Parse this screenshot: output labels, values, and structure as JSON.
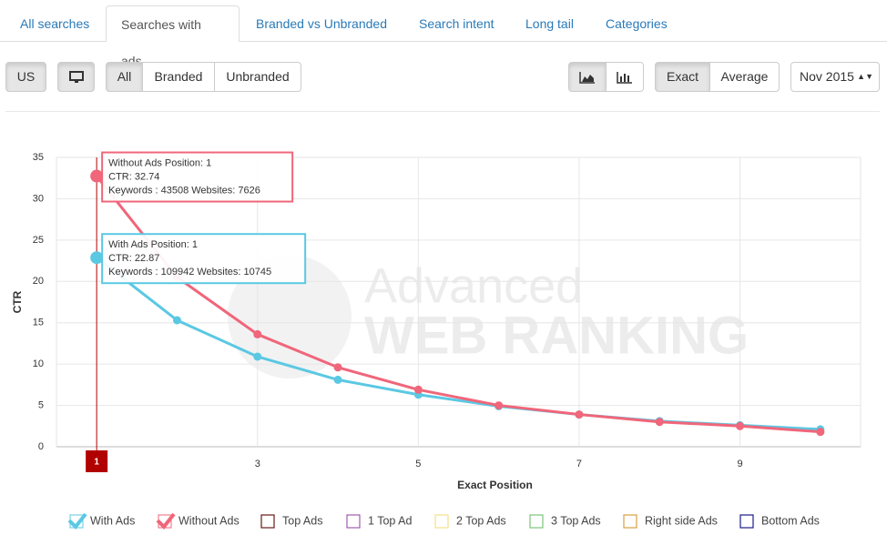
{
  "ui": {
    "tabs": [
      "All searches",
      "Searches with ads",
      "Branded vs Unbranded",
      "Search intent",
      "Long tail",
      "Categories"
    ],
    "country": "US",
    "filters": [
      "All",
      "Branded",
      "Unbranded"
    ],
    "modes": [
      "Exact",
      "Average"
    ],
    "month": "Nov 2015"
  },
  "chart_data": {
    "type": "line",
    "x_label": "Exact Position",
    "y_label": "CTR",
    "x": [
      1,
      2,
      3,
      4,
      5,
      6,
      7,
      8,
      9,
      10
    ],
    "series": [
      {
        "name": "With Ads",
        "color": "#5bc8e3",
        "values": [
          22.87,
          15.3,
          10.9,
          8.1,
          6.3,
          4.9,
          3.9,
          3.1,
          2.6,
          2.1
        ]
      },
      {
        "name": "Without Ads",
        "color": "#f0667a",
        "values": [
          32.74,
          20.5,
          13.6,
          9.6,
          6.9,
          5.0,
          3.9,
          3.0,
          2.5,
          1.8
        ]
      }
    ],
    "hidden_series": [
      {
        "name": "Top Ads",
        "color": "#6b1a1a"
      },
      {
        "name": "1 Top Ad",
        "color": "#a05cb0"
      },
      {
        "name": "2 Top Ads",
        "color": "#f5e08a"
      },
      {
        "name": "3 Top Ads",
        "color": "#7cc47a"
      },
      {
        "name": "Right side Ads",
        "color": "#d9a040"
      },
      {
        "name": "Bottom Ads",
        "color": "#1a1a8a"
      }
    ],
    "tooltips": [
      [
        "With Ads Position: 1",
        "CTR: 22.87",
        "Keywords : 109942 Websites: 10745"
      ],
      [
        "Without Ads Position: 1",
        "CTR: 32.74",
        "Keywords : 43508 Websites: 7626"
      ]
    ],
    "cursor_x": 1,
    "cursor_color": "#b00000",
    "watermark": [
      "Advanced",
      "WEB RANKING"
    ],
    "xlim": [
      0.5,
      10.5
    ],
    "ylim": [
      0,
      35
    ],
    "xticks": [
      3,
      5,
      7,
      9
    ],
    "yticks": [
      0,
      5,
      10,
      15,
      20,
      25,
      30,
      35
    ],
    "grid": true
  }
}
